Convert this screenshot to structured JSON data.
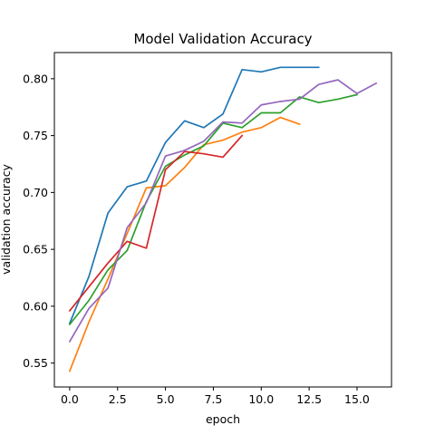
{
  "chart_data": {
    "type": "line",
    "title": "Model Validation Accuracy",
    "xlabel": "epoch",
    "ylabel": "validation accuracy",
    "xlim": [
      -0.8,
      16.8
    ],
    "ylim": [
      0.529,
      0.823
    ],
    "xticks": [
      0.0,
      2.5,
      5.0,
      7.5,
      10.0,
      12.5,
      15.0
    ],
    "xtick_labels": [
      "0.0",
      "2.5",
      "5.0",
      "7.5",
      "10.0",
      "12.5",
      "15.0"
    ],
    "yticks": [
      0.55,
      0.6,
      0.65,
      0.7,
      0.75,
      0.8
    ],
    "ytick_labels": [
      "0.55",
      "0.60",
      "0.65",
      "0.70",
      "0.75",
      "0.80"
    ],
    "grid": false,
    "legend": false,
    "series": [
      {
        "color": "#1f77b4",
        "x": [
          0,
          1,
          2,
          3,
          4,
          5,
          6,
          7,
          8,
          9,
          10,
          11,
          12,
          13
        ],
        "y": [
          0.585,
          0.626,
          0.682,
          0.705,
          0.71,
          0.744,
          0.763,
          0.757,
          0.769,
          0.808,
          0.806,
          0.81,
          0.81,
          0.81
        ]
      },
      {
        "color": "#ff7f0e",
        "x": [
          0,
          1,
          2,
          3,
          4,
          5,
          6,
          7,
          8,
          9,
          10,
          11,
          12
        ],
        "y": [
          0.543,
          0.586,
          0.624,
          0.664,
          0.704,
          0.706,
          0.722,
          0.742,
          0.746,
          0.753,
          0.757,
          0.766,
          0.76
        ]
      },
      {
        "color": "#2ca02c",
        "x": [
          0,
          1,
          2,
          3,
          4,
          5,
          6,
          7,
          8,
          9,
          10,
          11,
          12,
          13,
          14,
          15
        ],
        "y": [
          0.584,
          0.605,
          0.632,
          0.649,
          0.692,
          0.723,
          0.733,
          0.741,
          0.761,
          0.757,
          0.77,
          0.77,
          0.784,
          0.779,
          0.782,
          0.786
        ]
      },
      {
        "color": "#d62728",
        "x": [
          0,
          1,
          2,
          3,
          4,
          5,
          6,
          7,
          8,
          9
        ],
        "y": [
          0.596,
          0.617,
          0.638,
          0.657,
          0.651,
          0.72,
          0.736,
          0.734,
          0.731,
          0.75
        ]
      },
      {
        "color": "#9467bd",
        "x": [
          0,
          1,
          2,
          3,
          4,
          5,
          6,
          7,
          8,
          9,
          10,
          11,
          12,
          13,
          14,
          15,
          16
        ],
        "y": [
          0.569,
          0.598,
          0.616,
          0.669,
          0.691,
          0.732,
          0.737,
          0.745,
          0.762,
          0.761,
          0.777,
          0.78,
          0.782,
          0.795,
          0.799,
          0.787,
          0.796
        ]
      }
    ]
  }
}
